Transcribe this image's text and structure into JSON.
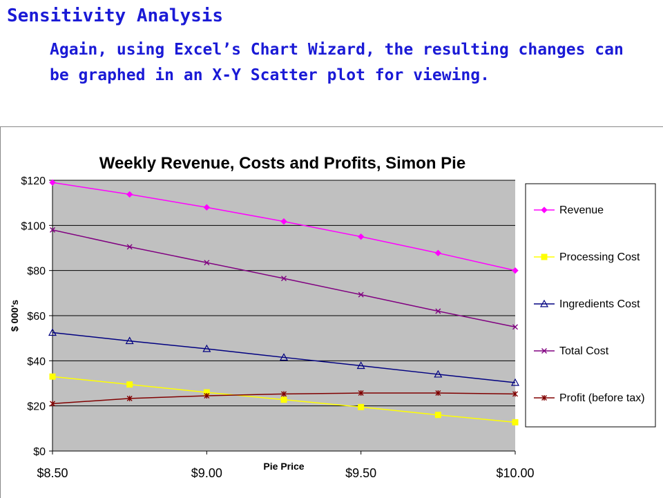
{
  "slide": {
    "heading": "Sensitivity Analysis",
    "body": "Again, using Excel’s Chart Wizard, the resulting changes can be graphed in an X-Y Scatter plot for viewing."
  },
  "chart_data": {
    "type": "scatter",
    "title": "Weekly Revenue, Costs and Profits, Simon Pie",
    "xlabel": "Pie Price",
    "ylabel": "$ 000's",
    "xlim": [
      8.5,
      10.0
    ],
    "ylim": [
      0,
      120
    ],
    "x_ticks": [
      "$8.50",
      "$9.00",
      "$9.50",
      "$10.00"
    ],
    "x_tick_values": [
      8.5,
      9.0,
      9.5,
      10.0
    ],
    "y_ticks": [
      "$0",
      "$20",
      "$40",
      "$60",
      "$80",
      "$100",
      "$120"
    ],
    "y_tick_values": [
      0,
      20,
      40,
      60,
      80,
      100,
      120
    ],
    "grid": "horizontal",
    "legend_position": "right",
    "plot_background": "#c0c0c0",
    "x": [
      8.5,
      8.75,
      9.0,
      9.25,
      9.5,
      9.75,
      10.0
    ],
    "series": [
      {
        "name": "Revenue",
        "color": "#ff00ff",
        "marker": "diamond",
        "values": [
          119,
          113.75,
          108,
          101.75,
          95,
          87.75,
          80
        ]
      },
      {
        "name": "Processing Cost",
        "color": "#ffff00",
        "marker": "square",
        "values": [
          33,
          29.5,
          26,
          22.75,
          19.5,
          16,
          12.75
        ]
      },
      {
        "name": "Ingredients Cost",
        "color": "#000080",
        "marker": "triangle",
        "values": [
          52.5,
          48.8,
          45.3,
          41.5,
          37.8,
          34,
          30.3
        ]
      },
      {
        "name": "Total Cost",
        "color": "#800080",
        "marker": "x",
        "values": [
          98,
          90.5,
          83.5,
          76.5,
          69.3,
          62,
          55
        ]
      },
      {
        "name": "Profit (before tax)",
        "color": "#800000",
        "marker": "star",
        "values": [
          21,
          23.3,
          24.5,
          25.3,
          25.7,
          25.7,
          25.3
        ]
      }
    ]
  }
}
